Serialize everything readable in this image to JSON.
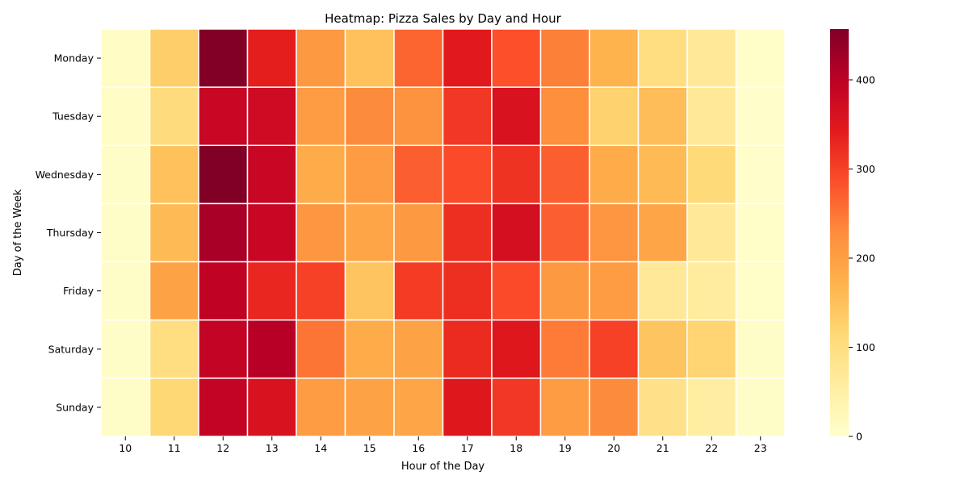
{
  "chart_data": {
    "type": "heatmap",
    "title": "Heatmap: Pizza Sales by Day and Hour",
    "xlabel": "Hour of the Day",
    "ylabel": "Day of the Week",
    "x": [
      "10",
      "11",
      "12",
      "13",
      "14",
      "15",
      "16",
      "17",
      "18",
      "19",
      "20",
      "21",
      "22",
      "23"
    ],
    "y": [
      "Monday",
      "Tuesday",
      "Wednesday",
      "Thursday",
      "Friday",
      "Saturday",
      "Sunday"
    ],
    "values": [
      [
        8,
        130,
        455,
        340,
        210,
        150,
        265,
        345,
        285,
        240,
        170,
        100,
        70,
        5
      ],
      [
        8,
        105,
        385,
        375,
        205,
        230,
        220,
        310,
        360,
        225,
        125,
        155,
        70,
        3
      ],
      [
        6,
        150,
        460,
        385,
        180,
        205,
        270,
        290,
        315,
        270,
        180,
        160,
        110,
        2
      ],
      [
        6,
        160,
        420,
        385,
        215,
        190,
        210,
        320,
        365,
        270,
        215,
        190,
        70,
        4
      ],
      [
        6,
        195,
        395,
        330,
        300,
        145,
        305,
        320,
        290,
        210,
        205,
        70,
        60,
        5
      ],
      [
        6,
        100,
        390,
        405,
        250,
        180,
        195,
        325,
        350,
        245,
        300,
        145,
        120,
        6
      ],
      [
        6,
        115,
        390,
        360,
        205,
        195,
        190,
        350,
        310,
        205,
        230,
        90,
        55,
        7
      ]
    ],
    "colormap": "YlOrRd",
    "vmin": 0,
    "vmax": 457,
    "colorbar_ticks": [
      0,
      100,
      200,
      300,
      400
    ],
    "grid": false
  }
}
